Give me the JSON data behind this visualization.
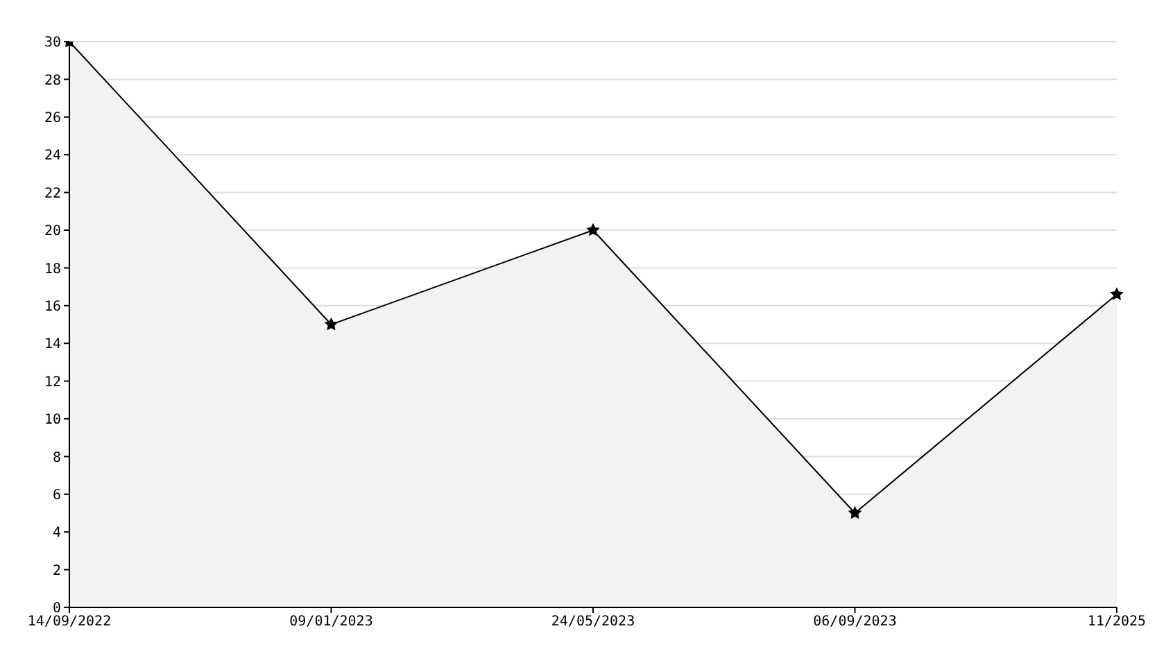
{
  "chart_data": {
    "type": "area",
    "categories": [
      "14/09/2022",
      "09/01/2023",
      "24/05/2023",
      "06/09/2023",
      "11/2025"
    ],
    "series": [
      {
        "color": "#000000",
        "values": [
          30,
          15,
          20,
          5,
          16.6
        ]
      }
    ],
    "ylim": [
      0,
      30
    ],
    "yticks": [
      0,
      2,
      4,
      6,
      8,
      10,
      12,
      14,
      16,
      18,
      20,
      22,
      24,
      26,
      28,
      30
    ],
    "grid": "y",
    "marker": "star",
    "line_style": "solid"
  }
}
